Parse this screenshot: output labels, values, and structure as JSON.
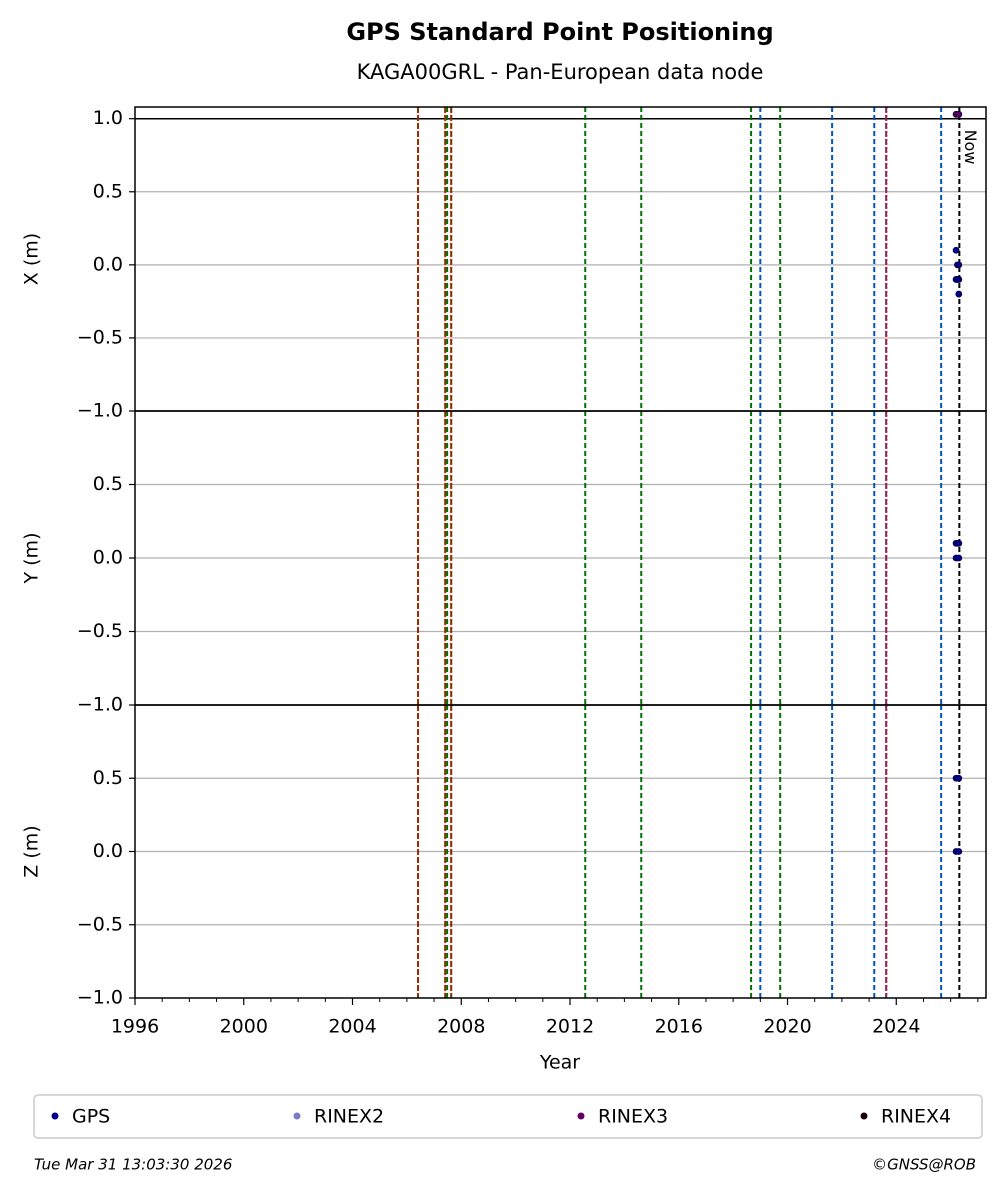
{
  "chart_data": {
    "type": "scatter",
    "title": "GPS Standard Point Positioning",
    "subtitle": "KAGA00GRL - Pan-European data node",
    "xlabel": "Year",
    "xlim": [
      1996,
      2027.3
    ],
    "xticks": [
      1996,
      2000,
      2004,
      2008,
      2012,
      2016,
      2020,
      2024
    ],
    "xminorticks": [
      1997,
      1998,
      1999,
      2001,
      2002,
      2003,
      2005,
      2006,
      2007,
      2009,
      2010,
      2011,
      2013,
      2014,
      2015,
      2017,
      2018,
      2019,
      2021,
      2022,
      2023,
      2025,
      2026,
      2027
    ],
    "grid": true,
    "legend": [
      {
        "name": "GPS",
        "color": "#00008b"
      },
      {
        "name": "RINEX2",
        "color": "#7b7bc8"
      },
      {
        "name": "RINEX3",
        "color": "#660060"
      },
      {
        "name": "RINEX4",
        "color": "#200010"
      }
    ],
    "vlines": [
      {
        "color": "#007000",
        "dash": "5,3",
        "x": [
          2006.41,
          2007.41,
          2007.48,
          2007.63,
          2012.56,
          2014.62,
          2018.66,
          2019.73
        ]
      },
      {
        "color": "#0055bb",
        "dash": "5,3",
        "x": [
          2019.0,
          2021.64,
          2023.19,
          2023.63,
          2025.65
        ]
      },
      {
        "color": "#ff0000",
        "dash": "2,2",
        "x": [
          2006.41,
          2007.41,
          2007.63,
          2023.63
        ]
      }
    ],
    "now": {
      "label": "Now",
      "x": 2026.32
    },
    "panels": [
      {
        "ylabel": "X (m)",
        "ylim": [
          -1,
          1.08
        ],
        "hline": 1.0,
        "yticks": [
          {
            "value": -1,
            "label": "−1.0"
          },
          {
            "value": -0.5,
            "label": "−0.5"
          },
          {
            "value": 0,
            "label": "0.0"
          },
          {
            "value": 0.5,
            "label": "0.5"
          },
          {
            "value": 1,
            "label": "1.0"
          }
        ],
        "series": [
          {
            "color": "#00008b",
            "x": [
              2026.2,
              2026.25,
              2026.3,
              2026.2,
              2026.3,
              2026.25,
              2026.3
            ],
            "values": [
              0.1,
              0.0,
              0.0,
              -0.1,
              -0.1,
              -0.1,
              -0.2
            ]
          },
          {
            "color": "#660060",
            "x": [
              2026.2,
              2026.3
            ],
            "values": [
              1.03,
              1.03
            ]
          }
        ]
      },
      {
        "ylabel": "Y (m)",
        "ylim": [
          -1,
          1
        ],
        "yticks": [
          {
            "value": -1,
            "label": "−1.0"
          },
          {
            "value": -0.5,
            "label": "−0.5"
          },
          {
            "value": 0,
            "label": "0.0"
          },
          {
            "value": 0.5,
            "label": "0.5"
          }
        ],
        "series": [
          {
            "color": "#00008b",
            "x": [
              2026.2,
              2026.3,
              2026.2,
              2026.3
            ],
            "values": [
              0.1,
              0.1,
              0.0,
              0.0
            ]
          }
        ]
      },
      {
        "ylabel": "Z (m)",
        "ylim": [
          -1,
          1
        ],
        "yticks": [
          {
            "value": -1,
            "label": "−1.0"
          },
          {
            "value": -0.5,
            "label": "−0.5"
          },
          {
            "value": 0,
            "label": "0.0"
          },
          {
            "value": 0.5,
            "label": "0.5"
          }
        ],
        "series": [
          {
            "color": "#00008b",
            "x": [
              2026.2,
              2026.3,
              2026.2,
              2026.3
            ],
            "values": [
              0.5,
              0.5,
              0.0,
              0.0
            ]
          }
        ]
      }
    ],
    "timestamp": "Tue Mar 31 13:03:30 2026",
    "credit": "©GNSS@ROB"
  }
}
